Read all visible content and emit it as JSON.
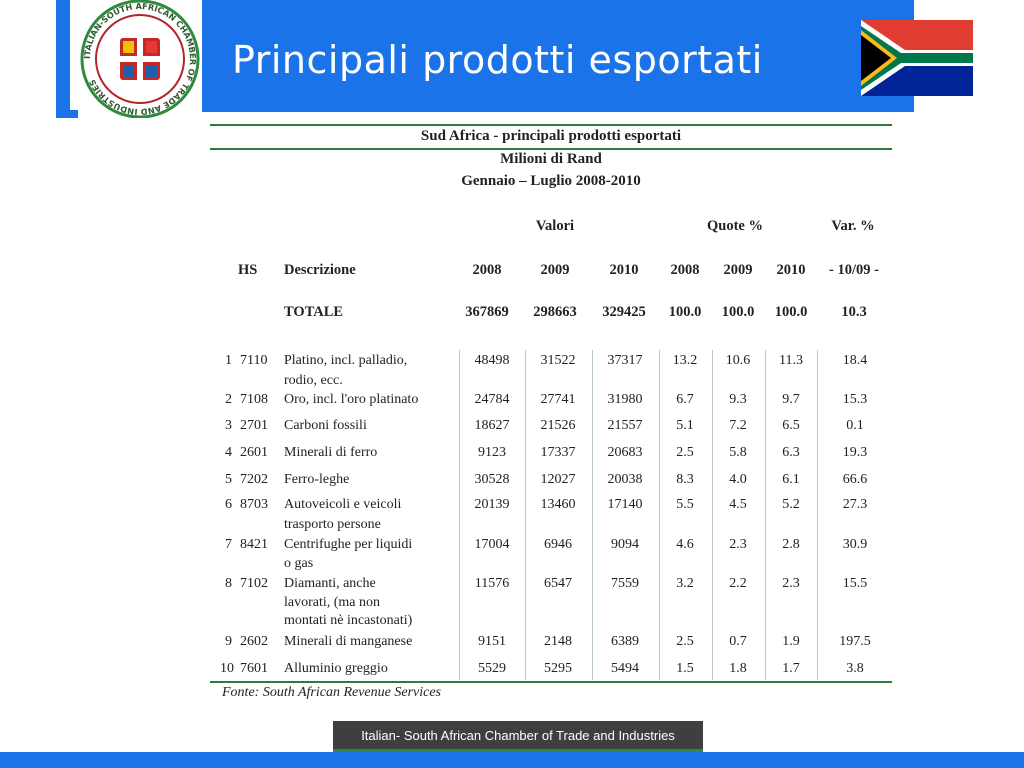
{
  "slide": {
    "title": "Principali prodotti esportati",
    "footer": "Italian- South African Chamber of Trade and Industries",
    "logo_text": "ITALIAN-SOUTH AFRICAN CHAMBER OF TRADE AND INDUSTRIES",
    "colors": {
      "accent_blue": "#1a73e8",
      "green_rule": "#2f7a3c",
      "footer_bg": "#3f3f3f"
    }
  },
  "table": {
    "title": "Sud Africa - principali prodotti esportati",
    "subtitle1": "Milioni di Rand",
    "subtitle2": "Gennaio – Luglio 2008-2010",
    "group_headers": {
      "valori": "Valori",
      "quote": "Quote %",
      "var": "Var. %"
    },
    "columns": {
      "hs": "HS",
      "desc": "Descrizione",
      "v2008": "2008",
      "v2009": "2009",
      "v2010": "2010",
      "q2008": "2008",
      "q2009": "2009",
      "q2010": "2010",
      "var": "- 10/09 -"
    },
    "total": {
      "label": "TOTALE",
      "v2008": "367869",
      "v2009": "298663",
      "v2010": "329425",
      "q2008": "100.0",
      "q2009": "100.0",
      "q2010": "100.0",
      "var": "10.3"
    },
    "rows": [
      {
        "n": "1",
        "hs": "7110",
        "desc1": "Platino, incl. palladio,",
        "desc2": "rodio, ecc.",
        "desc3": "",
        "v2008": "48498",
        "v2009": "31522",
        "v2010": "37317",
        "q2008": "13.2",
        "q2009": "10.6",
        "q2010": "11.3",
        "var": "18.4"
      },
      {
        "n": "2",
        "hs": "7108",
        "desc1": "Oro, incl. l'oro platinato",
        "desc2": "",
        "desc3": "",
        "v2008": "24784",
        "v2009": "27741",
        "v2010": "31980",
        "q2008": "6.7",
        "q2009": "9.3",
        "q2010": "9.7",
        "var": "15.3"
      },
      {
        "n": "3",
        "hs": "2701",
        "desc1": "Carboni fossili",
        "desc2": "",
        "desc3": "",
        "v2008": "18627",
        "v2009": "21526",
        "v2010": "21557",
        "q2008": "5.1",
        "q2009": "7.2",
        "q2010": "6.5",
        "var": "0.1"
      },
      {
        "n": "4",
        "hs": "2601",
        "desc1": "Minerali di ferro",
        "desc2": "",
        "desc3": "",
        "v2008": "9123",
        "v2009": "17337",
        "v2010": "20683",
        "q2008": "2.5",
        "q2009": "5.8",
        "q2010": "6.3",
        "var": "19.3"
      },
      {
        "n": "5",
        "hs": "7202",
        "desc1": "Ferro-leghe",
        "desc2": "",
        "desc3": "",
        "v2008": "30528",
        "v2009": "12027",
        "v2010": "20038",
        "q2008": "8.3",
        "q2009": "4.0",
        "q2010": "6.1",
        "var": "66.6"
      },
      {
        "n": "6",
        "hs": "8703",
        "desc1": "Autoveicoli e veicoli",
        "desc2": "trasporto persone",
        "desc3": "",
        "v2008": "20139",
        "v2009": "13460",
        "v2010": "17140",
        "q2008": "5.5",
        "q2009": "4.5",
        "q2010": "5.2",
        "var": "27.3"
      },
      {
        "n": "7",
        "hs": "8421",
        "desc1": "Centrifughe per liquidi",
        "desc2": "o gas",
        "desc3": "",
        "v2008": "17004",
        "v2009": "6946",
        "v2010": "9094",
        "q2008": "4.6",
        "q2009": "2.3",
        "q2010": "2.8",
        "var": "30.9"
      },
      {
        "n": "8",
        "hs": "7102",
        "desc1": "Diamanti, anche",
        "desc2": "lavorati, (ma non",
        "desc3": "montati nè incastonati)",
        "v2008": "11576",
        "v2009": "6547",
        "v2010": "7559",
        "q2008": "3.2",
        "q2009": "2.2",
        "q2010": "2.3",
        "var": "15.5"
      },
      {
        "n": "9",
        "hs": "2602",
        "desc1": "Minerali di manganese",
        "desc2": "",
        "desc3": "",
        "v2008": "9151",
        "v2009": "2148",
        "v2010": "6389",
        "q2008": "2.5",
        "q2009": "0.7",
        "q2010": "1.9",
        "var": "197.5"
      },
      {
        "n": "10",
        "hs": "7601",
        "desc1": "Alluminio greggio",
        "desc2": "",
        "desc3": "",
        "v2008": "5529",
        "v2009": "5295",
        "v2010": "5494",
        "q2008": "1.5",
        "q2009": "1.8",
        "q2010": "1.7",
        "var": "3.8"
      }
    ],
    "source": "Fonte: South African Revenue Services"
  }
}
